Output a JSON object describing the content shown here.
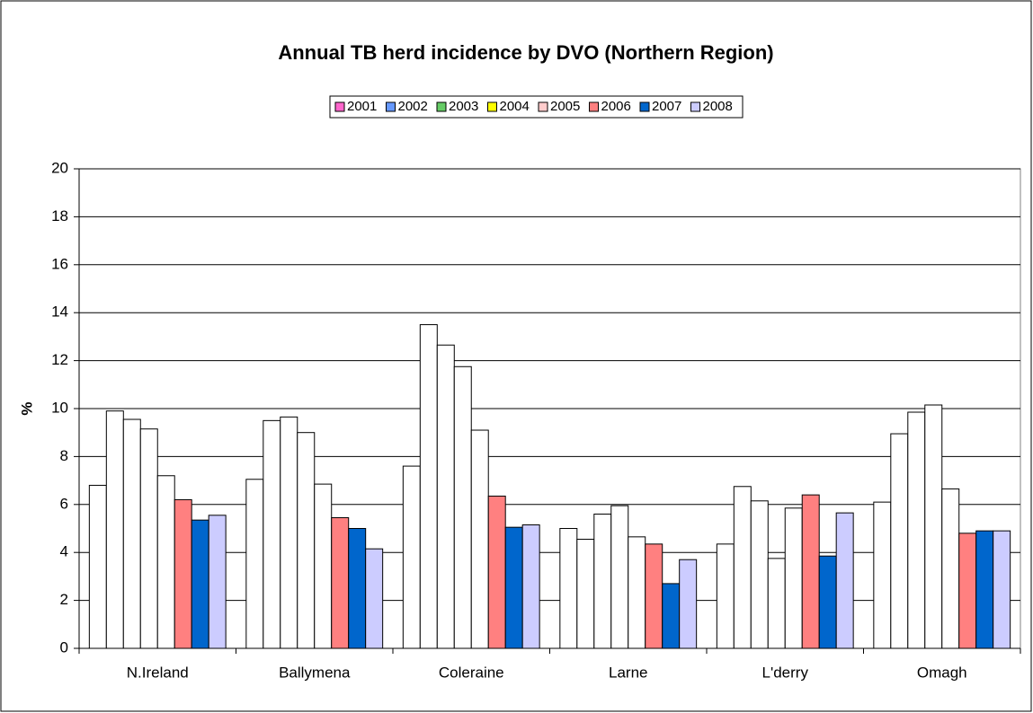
{
  "chart_data": {
    "type": "bar",
    "title": "Annual TB herd incidence by DVO (Northern Region)",
    "y_label": "%",
    "categories": [
      "N.Ireland",
      "Ballymena",
      "Coleraine",
      "Larne",
      "L'derry",
      "Omagh"
    ],
    "series": [
      {
        "name": "2001",
        "color": "#ffffff",
        "legend_color": "#ff66cc",
        "values": [
          6.8,
          7.05,
          7.6,
          5.0,
          4.35,
          6.1
        ]
      },
      {
        "name": "2002",
        "color": "#ffffff",
        "legend_color": "#6699ff",
        "values": [
          9.9,
          9.5,
          13.5,
          4.55,
          6.75,
          8.95
        ]
      },
      {
        "name": "2003",
        "color": "#ffffff",
        "legend_color": "#66cc66",
        "values": [
          9.55,
          9.65,
          12.65,
          5.6,
          6.15,
          9.85
        ]
      },
      {
        "name": "2004",
        "color": "#ffffff",
        "legend_color": "#ffff00",
        "values": [
          9.15,
          9.0,
          11.75,
          5.95,
          3.75,
          10.15
        ]
      },
      {
        "name": "2005",
        "color": "#ffffff",
        "legend_color": "#ffcccc",
        "values": [
          7.2,
          6.85,
          9.1,
          4.65,
          5.85,
          6.65
        ]
      },
      {
        "name": "2006",
        "color": "#ff8080",
        "legend_color": "#ff8080",
        "values": [
          6.2,
          5.45,
          6.35,
          4.35,
          6.4,
          4.8
        ]
      },
      {
        "name": "2007",
        "color": "#0066cc",
        "legend_color": "#0066cc",
        "values": [
          5.35,
          5.0,
          5.05,
          2.7,
          3.85,
          4.9
        ]
      },
      {
        "name": "2008",
        "color": "#ccccff",
        "legend_color": "#ccccff",
        "values": [
          5.55,
          4.15,
          5.15,
          3.7,
          5.65,
          4.9
        ]
      }
    ],
    "ylim": [
      0,
      20
    ],
    "yticks": [
      0,
      2,
      4,
      6,
      8,
      10,
      12,
      14,
      16,
      18,
      20
    ],
    "grid": true,
    "legend": "top"
  }
}
